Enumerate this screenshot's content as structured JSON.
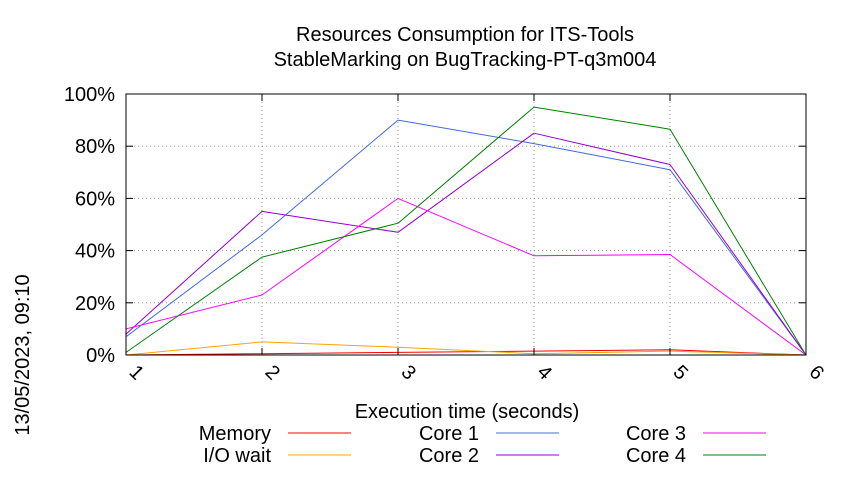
{
  "chart_data": {
    "type": "line",
    "title": "Resources Consumption for ITS-Tools",
    "subtitle": "StableMarking on BugTracking-PT-q3m004",
    "xlabel": "Execution time (seconds)",
    "ylabel": "",
    "side_label": "13/05/2023, 09:10",
    "x": [
      1,
      2,
      3,
      4,
      5,
      6
    ],
    "xlim": [
      1,
      6
    ],
    "ylim": [
      0,
      100
    ],
    "x_ticks": [
      "1",
      "2",
      "3",
      "4",
      "5",
      "6"
    ],
    "y_ticks": [
      "0%",
      "20%",
      "40%",
      "60%",
      "80%",
      "100%"
    ],
    "grid": true,
    "legend_position": "bottom",
    "series": [
      {
        "name": "Memory",
        "color": "#ff0000",
        "values": [
          0,
          0.5,
          1,
          1.5,
          2,
          0
        ]
      },
      {
        "name": "I/O wait",
        "color": "#ffa500",
        "values": [
          0,
          5,
          3,
          0.5,
          1.5,
          0
        ]
      },
      {
        "name": "Core 1",
        "color": "#4169e1",
        "values": [
          7,
          46,
          90,
          81,
          71,
          0
        ]
      },
      {
        "name": "Core 2",
        "color": "#9400d3",
        "values": [
          8,
          55,
          47,
          85,
          73,
          0
        ]
      },
      {
        "name": "Core 3",
        "color": "#ff00ff",
        "values": [
          10,
          23,
          60,
          38,
          38.5,
          0
        ]
      },
      {
        "name": "Core 4",
        "color": "#008000",
        "values": [
          1,
          37.5,
          50.5,
          95,
          86.5,
          0
        ]
      }
    ]
  }
}
